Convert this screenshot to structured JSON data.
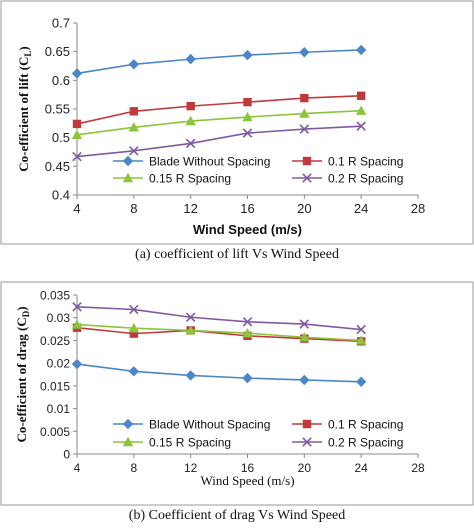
{
  "charts": {
    "a": {
      "caption": "(a) coefficient of lift Vs Wind Speed"
    },
    "b": {
      "caption": "(b)  Coefficient of drag Vs Wind Speed"
    }
  },
  "series_style": [
    {
      "color": "#4a86c8",
      "marker": "diamond"
    },
    {
      "color": "#c0393b",
      "marker": "square"
    },
    {
      "color": "#8cc43c",
      "marker": "triangle"
    },
    {
      "color": "#7e5aa2",
      "marker": "x"
    }
  ],
  "chart_data": [
    {
      "type": "line",
      "title": "",
      "xlabel": "Wind Speed (m/s)",
      "ylabel": "Co-efficient of lift (C",
      "ylabel_sub": "L",
      "ylabel_close": ")",
      "x_ticks": [
        "4",
        "8",
        "12",
        "16",
        "20",
        "24",
        "28"
      ],
      "y_ticks": [
        "0.4",
        "0.45",
        "0.5",
        "0.55",
        "0.6",
        "0.65",
        "0.7"
      ],
      "xlim": [
        4,
        28
      ],
      "ylim": [
        0.4,
        0.7
      ],
      "grid": false,
      "legend": "inside-bottom",
      "x": [
        4,
        8,
        12,
        16,
        20,
        24
      ],
      "series": [
        {
          "name": "Blade Without Spacing",
          "values": [
            0.612,
            0.628,
            0.637,
            0.644,
            0.649,
            0.653
          ]
        },
        {
          "name": "0.1 R Spacing",
          "values": [
            0.524,
            0.546,
            0.555,
            0.562,
            0.569,
            0.573
          ]
        },
        {
          "name": "0.15 R Spacing",
          "values": [
            0.505,
            0.518,
            0.529,
            0.536,
            0.542,
            0.547
          ]
        },
        {
          "name": "0.2 R Spacing",
          "values": [
            0.467,
            0.477,
            0.49,
            0.508,
            0.515,
            0.52
          ]
        }
      ]
    },
    {
      "type": "line",
      "title": "",
      "xlabel": "Wind Speed (m/s)",
      "ylabel": "Co-efficient of drag (C",
      "ylabel_sub": "D",
      "ylabel_close": ")",
      "x_ticks": [
        "4",
        "8",
        "12",
        "16",
        "20",
        "24",
        "28"
      ],
      "y_ticks": [
        "0",
        "0.005",
        "0.01",
        "0.015",
        "0.02",
        "0.025",
        "0.03",
        "0.035"
      ],
      "xlim": [
        4,
        28
      ],
      "ylim": [
        0,
        0.035
      ],
      "grid": false,
      "legend": "inside-bottom",
      "x": [
        4,
        8,
        12,
        16,
        20,
        24
      ],
      "series": [
        {
          "name": "Blade Without Spacing",
          "values": [
            0.0198,
            0.0182,
            0.0173,
            0.0167,
            0.0163,
            0.0159
          ]
        },
        {
          "name": "0.1 R Spacing",
          "values": [
            0.0278,
            0.0265,
            0.0272,
            0.026,
            0.0254,
            0.0248
          ]
        },
        {
          "name": "0.15 R Spacing",
          "values": [
            0.0285,
            0.0277,
            0.0272,
            0.0266,
            0.0257,
            0.025
          ]
        },
        {
          "name": "0.2 R Spacing",
          "values": [
            0.0324,
            0.0318,
            0.0301,
            0.0291,
            0.0286,
            0.0274
          ]
        }
      ]
    }
  ]
}
